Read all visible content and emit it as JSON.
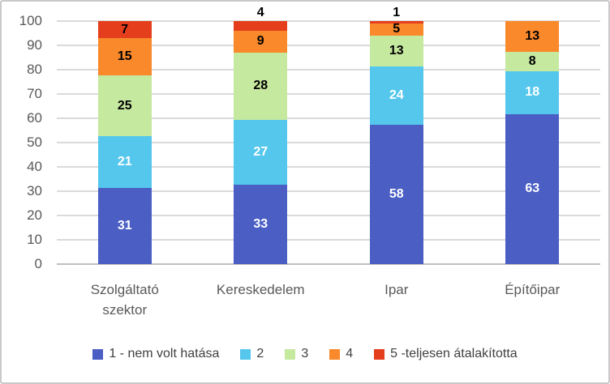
{
  "chart_data": {
    "type": "bar",
    "stacked": true,
    "title": "",
    "xlabel": "",
    "ylabel": "",
    "categories": [
      "Szolgáltató szektor",
      "Kereskedelem",
      "Ipar",
      "Építőipar"
    ],
    "series": [
      {
        "name": "1 - nem volt hatása",
        "color": "#4A5EC4",
        "label_color": "#FFFFFF",
        "values": [
          31,
          33,
          58,
          63
        ]
      },
      {
        "name": "2",
        "color": "#55C7EC",
        "label_color": "#FFFFFF",
        "values": [
          21,
          27,
          24,
          18
        ]
      },
      {
        "name": "3",
        "color": "#C6E9A0",
        "label_color": "#000000",
        "values": [
          25,
          28,
          13,
          8
        ]
      },
      {
        "name": "4",
        "color": "#F9892A",
        "label_color": "#000000",
        "values": [
          15,
          9,
          5,
          13
        ]
      },
      {
        "name": "5 -teljesen átalakította",
        "color": "#E53E1D",
        "label_color": "#000000",
        "values": [
          7,
          4,
          1,
          0
        ]
      }
    ],
    "ylim": [
      0,
      100
    ],
    "ytick_step": 10,
    "ytick_labels": [
      "0",
      "10",
      "20",
      "30",
      "40",
      "50",
      "60",
      "70",
      "80",
      "90",
      "100"
    ],
    "grid": true,
    "legend_position": "bottom",
    "bars_normalized_to_100": true,
    "data_labels_shown": true
  },
  "colors": {
    "gridline": "#DADADA",
    "axis_line": "#C0C0C0",
    "tick_text": "#595959",
    "category_text": "#595959",
    "legend_text": "#404040",
    "border": "#C9C9C9",
    "background": "#FFFFFF"
  }
}
